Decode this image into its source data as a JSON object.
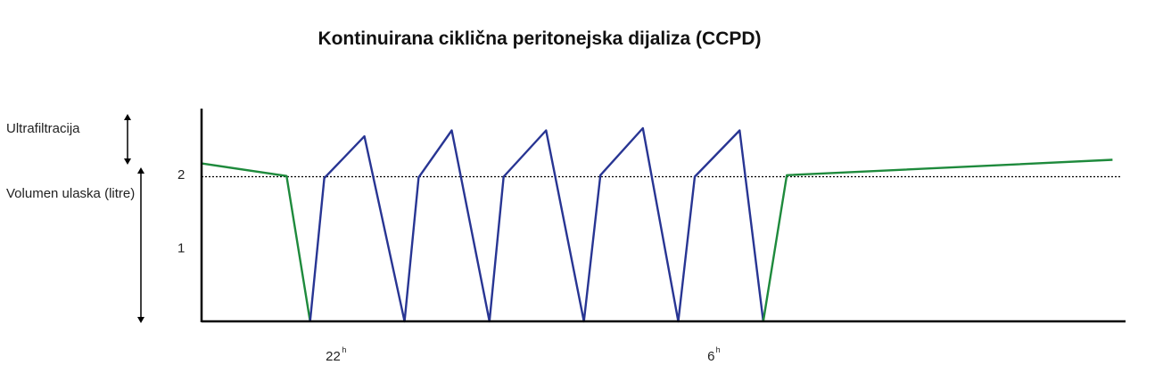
{
  "chart_data": {
    "type": "line",
    "title": "Kontinuirana ciklična peritonejska dijaliza (CCPD)",
    "ylabel": "Volumen ulaska (litre)",
    "ultrafiltration_label": "Ultrafiltracija",
    "yticks": [
      {
        "value": 1,
        "label": "1"
      },
      {
        "value": 2,
        "label": "2"
      }
    ],
    "xticks": [
      {
        "value": 22,
        "label": "22",
        "sup": "h"
      },
      {
        "value": 30,
        "label": "6",
        "sup": "h"
      }
    ],
    "xlim": [
      19.2,
      38.7
    ],
    "ylim": [
      0,
      3.3
    ],
    "reference_line": {
      "y": 1.97,
      "style": "dotted"
    },
    "colors": {
      "day": "#1e8a3c",
      "night": "#283593",
      "axis": "#000000"
    },
    "series": [
      {
        "segment": "day-before",
        "color_key": "day",
        "points": [
          [
            19.2,
            2.15
          ],
          [
            21.0,
            1.98
          ],
          [
            21.5,
            0.0
          ]
        ]
      },
      {
        "segment": "night-cycles",
        "color_key": "night",
        "points": [
          [
            21.5,
            0.0
          ],
          [
            21.8,
            1.95
          ],
          [
            22.65,
            2.52
          ],
          [
            23.5,
            0.0
          ],
          [
            23.8,
            1.96
          ],
          [
            24.5,
            2.6
          ],
          [
            25.3,
            0.0
          ],
          [
            25.6,
            1.97
          ],
          [
            26.5,
            2.6
          ],
          [
            27.3,
            0.0
          ],
          [
            27.65,
            1.99
          ],
          [
            28.55,
            2.63
          ],
          [
            29.3,
            0.0
          ],
          [
            29.65,
            1.97
          ],
          [
            30.6,
            2.6
          ],
          [
            31.1,
            0.0
          ]
        ]
      },
      {
        "segment": "day-after",
        "color_key": "day",
        "points": [
          [
            31.1,
            0.0
          ],
          [
            31.6,
            1.99
          ],
          [
            38.5,
            2.2
          ]
        ]
      }
    ]
  }
}
